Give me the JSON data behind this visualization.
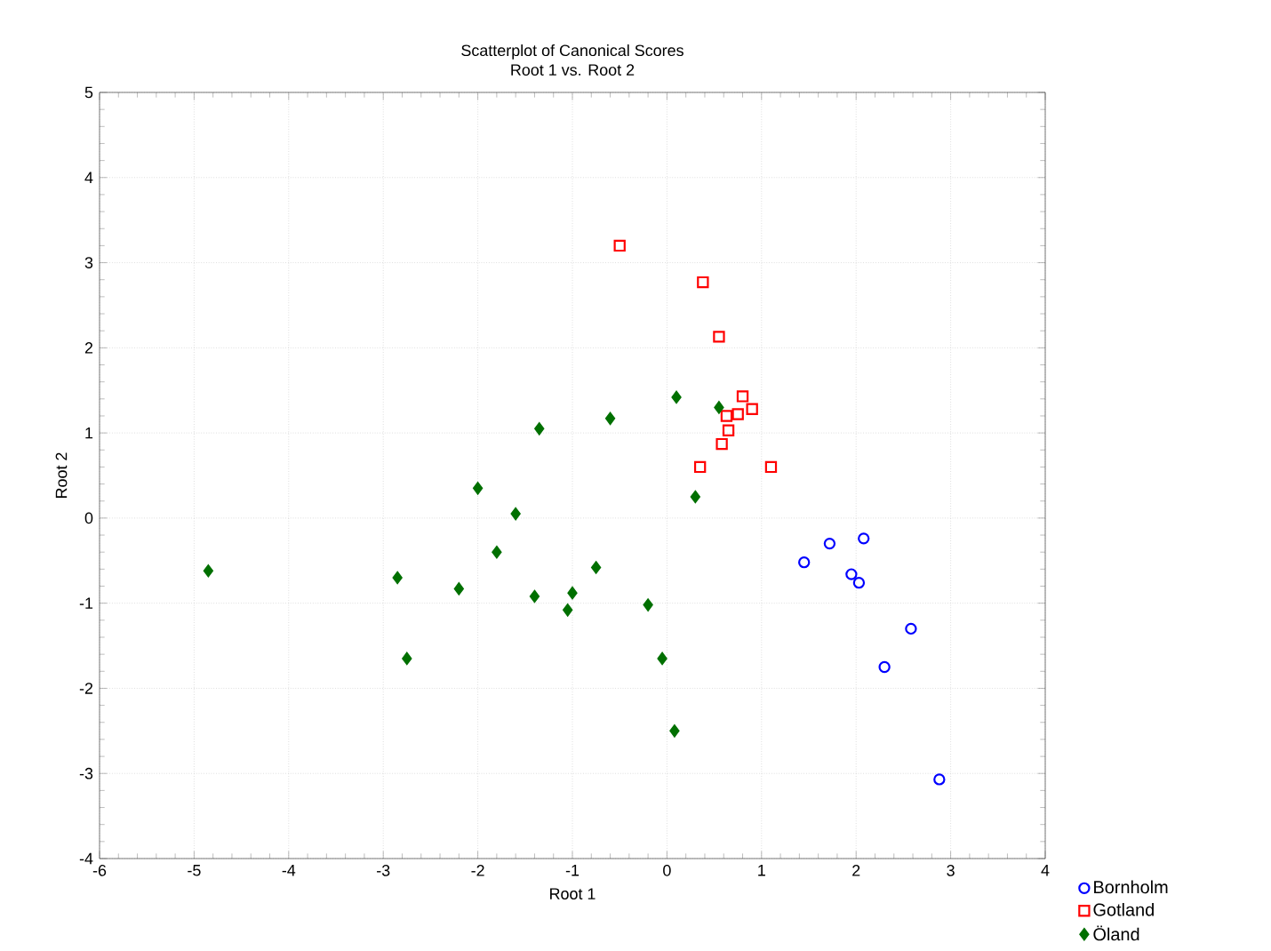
{
  "chart_data": {
    "type": "scatter",
    "title": "Scatterplot of Canonical Scores",
    "subtitle": "Root 1 vs. Root 2",
    "xlabel": "Root 1",
    "ylabel": "Root 2",
    "xlim": [
      -6,
      4
    ],
    "ylim": [
      -4,
      5
    ],
    "xticks": [
      -6,
      -5,
      -4,
      -3,
      -2,
      -1,
      0,
      1,
      2,
      3,
      4
    ],
    "yticks": [
      -4,
      -3,
      -2,
      -1,
      0,
      1,
      2,
      3,
      4,
      5
    ],
    "grid": true,
    "legend": "bottom right",
    "series": [
      {
        "name": "Bornholm",
        "color": "#0000ff",
        "marker": "circle",
        "x": [
          1.45,
          1.72,
          2.08,
          1.95,
          2.03,
          2.58,
          2.3,
          2.88
        ],
        "values": [
          -0.52,
          -0.3,
          -0.24,
          -0.66,
          -0.76,
          -1.3,
          -1.75,
          -3.07
        ]
      },
      {
        "name": "Gotland",
        "color": "#ff0000",
        "marker": "square",
        "x": [
          -0.5,
          0.38,
          0.55,
          0.8,
          0.9,
          0.75,
          0.63,
          0.65,
          0.58,
          0.35,
          1.1
        ],
        "values": [
          3.2,
          2.77,
          2.13,
          1.43,
          1.28,
          1.22,
          1.2,
          1.03,
          0.87,
          0.6,
          0.6
        ]
      },
      {
        "name": "Öland",
        "color": "#007000",
        "marker": "diamond",
        "x": [
          -4.85,
          -2.85,
          -2.75,
          -2.2,
          -2.0,
          -1.8,
          -1.6,
          -1.4,
          -1.35,
          -1.05,
          -1.0,
          -0.75,
          -0.6,
          -0.2,
          -0.05,
          0.1,
          0.08,
          0.3,
          0.55
        ],
        "values": [
          -0.62,
          -0.7,
          -1.65,
          -0.83,
          0.35,
          -0.4,
          0.05,
          -0.92,
          1.05,
          -1.08,
          -0.88,
          -0.58,
          1.17,
          -1.02,
          -1.65,
          1.42,
          -2.5,
          0.25,
          1.3
        ]
      }
    ]
  }
}
